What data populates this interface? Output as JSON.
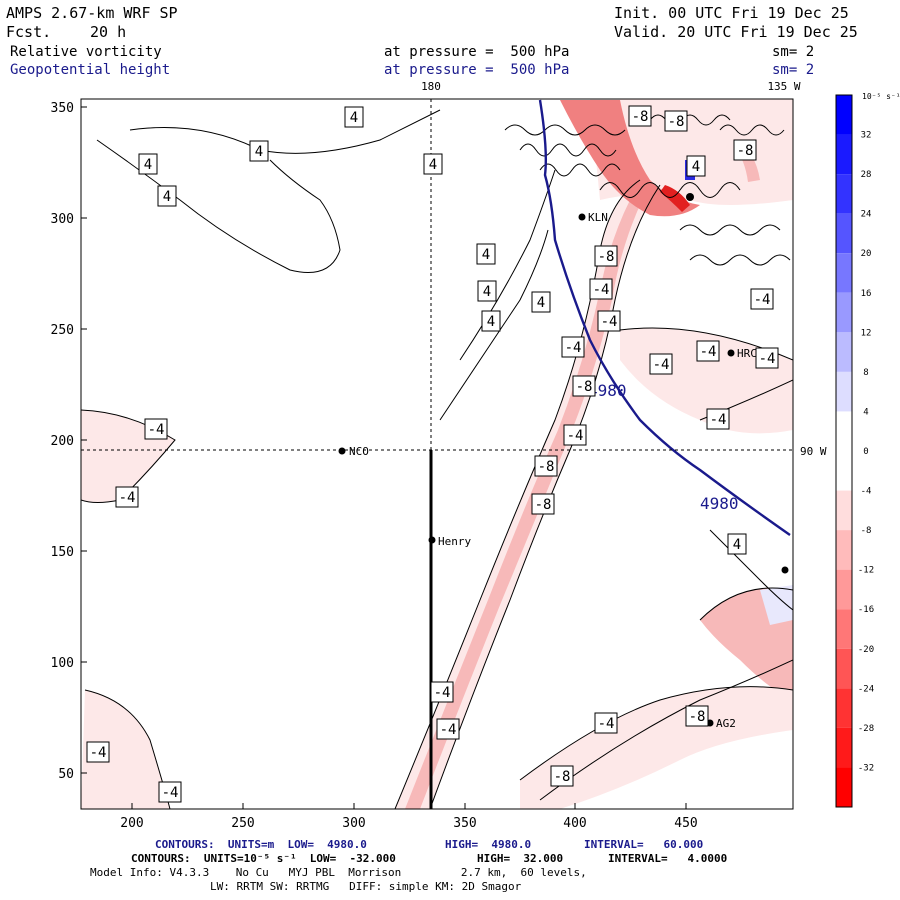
{
  "header": {
    "model": "AMPS 2.67-km WRF SP",
    "fcst_label": "Fcst.",
    "fcst_value": "20 h",
    "init": "Init. 00 UTC Fri 19 Dec 25",
    "valid": "Valid. 20 UTC Fri 19 Dec 25",
    "field1_name": "Relative vorticity",
    "field1_level": "at pressure =  500 hPa",
    "field1_sm": "sm= 2",
    "field2_name": "Geopotential height",
    "field2_level": "at pressure =  500 hPa",
    "field2_sm": "sm= 2"
  },
  "map": {
    "meridian_180": "180",
    "meridian_135w": "135 W",
    "lat_90w": "90 W",
    "x_ticks": [
      "200",
      "250",
      "300",
      "350",
      "400",
      "450"
    ],
    "y_ticks": [
      "350",
      "300",
      "250",
      "200",
      "150",
      "100",
      "50"
    ],
    "stations": [
      {
        "name": "NCO"
      },
      {
        "name": "Henry"
      },
      {
        "name": "HRC"
      },
      {
        "name": "AG2"
      },
      {
        "name": "KLN"
      }
    ],
    "height_labels": [
      "4980",
      "4980"
    ],
    "vort_labels": [
      "4",
      "4",
      "4",
      "4",
      "4",
      "4",
      "4",
      "4",
      "4",
      "4",
      "4",
      "-4",
      "-4",
      "-4",
      "-4",
      "-4",
      "-4",
      "-4",
      "-4",
      "-4",
      "-4",
      "-4",
      "-4",
      "-4",
      "-4",
      "-4",
      "-4",
      "-8",
      "-8",
      "-8",
      "-8",
      "-8",
      "-8",
      "-8",
      "-8",
      "-8"
    ]
  },
  "colorbar": {
    "units": "10⁻⁵ s⁻¹",
    "labels": [
      "32",
      "28",
      "24",
      "20",
      "16",
      "12",
      "8",
      "4",
      "0",
      "-4",
      "-8",
      "-12",
      "-16",
      "-20",
      "-24",
      "-28",
      "-32"
    ]
  },
  "footer": {
    "line1_a": "CONTOURS:  UNITS=m  LOW=  4980.0",
    "line1_b": "HIGH=  4980.0",
    "line1_c": "INTERVAL=   60.000",
    "line2_a": "CONTOURS:  UNITS=10⁻⁵ s⁻¹  LOW=  -32.000",
    "line2_b": "HIGH=  32.000",
    "line2_c": "INTERVAL=   4.0000",
    "line3": "Model Info: V4.3.3    No Cu   MYJ PBL  Morrison         2.7 km,  60 levels,",
    "line4": "LW: RRTM SW: RRTMG   DIFF: simple KM: 2D Smagor"
  }
}
